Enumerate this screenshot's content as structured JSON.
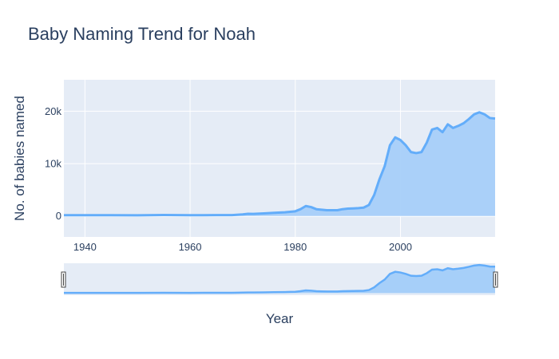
{
  "chart_data": {
    "type": "area",
    "title": "Baby Naming Trend for Noah",
    "xlabel": "Year",
    "ylabel": "No. of babies named",
    "xlim": [
      1936,
      2018
    ],
    "ylim": [
      -4000,
      26000
    ],
    "x_ticks": [
      "1940",
      "1960",
      "1980",
      "2000"
    ],
    "x_tick_values": [
      1940,
      1960,
      1980,
      2000
    ],
    "y_ticks": [
      "0",
      "10k",
      "20k"
    ],
    "y_tick_values": [
      0,
      10000,
      20000
    ],
    "grid": true,
    "rangeslider": true,
    "colors": {
      "line": "#63adfa",
      "fill": "#a6cff9",
      "plot_bg": "#e5ecf6",
      "grid": "#ffffff",
      "text": "#2a3f5f"
    },
    "series": [
      {
        "x": [
          1936,
          1940,
          1945,
          1950,
          1955,
          1960,
          1965,
          1968,
          1970,
          1971,
          1972,
          1974,
          1976,
          1978,
          1979,
          1980,
          1981,
          1982,
          1983,
          1984,
          1985,
          1986,
          1987,
          1988,
          1989,
          1990,
          1991,
          1992,
          1993,
          1994,
          1995,
          1996,
          1997,
          1998,
          1999,
          2000,
          2001,
          2002,
          2003,
          2004,
          2005,
          2006,
          2007,
          2008,
          2009,
          2010,
          2011,
          2012,
          2013,
          2014,
          2015,
          2016,
          2017,
          2018
        ],
        "values": [
          150,
          150,
          150,
          140,
          180,
          150,
          160,
          170,
          300,
          420,
          400,
          500,
          600,
          700,
          800,
          900,
          1300,
          1900,
          1700,
          1300,
          1200,
          1100,
          1100,
          1100,
          1300,
          1400,
          1450,
          1500,
          1600,
          2100,
          4000,
          7000,
          9500,
          13500,
          15000,
          14500,
          13500,
          12200,
          12000,
          12200,
          14000,
          16500,
          16800,
          16000,
          17500,
          16800,
          17200,
          17700,
          18500,
          19400,
          19800,
          19400,
          18700,
          18600
        ]
      }
    ]
  }
}
